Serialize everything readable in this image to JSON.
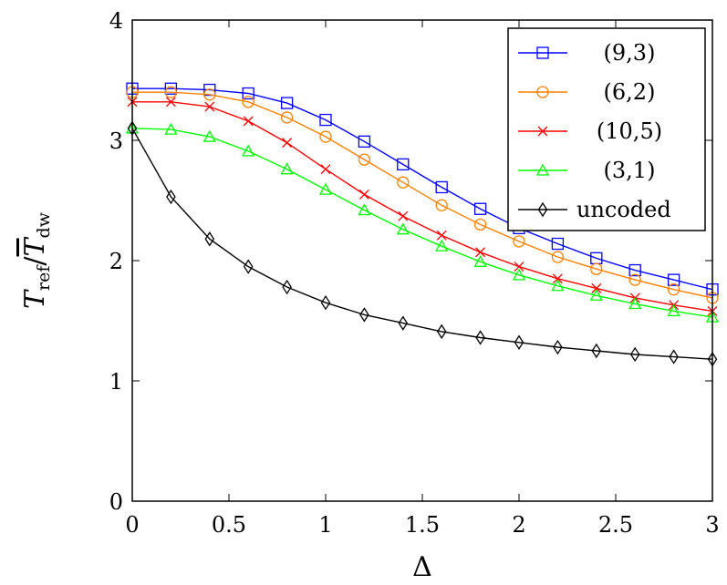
{
  "chart_data": {
    "type": "line",
    "title": "",
    "xlabel": "Δ",
    "ylabel_main": "T",
    "ylabel_sub": "ref",
    "ylabel_slash": "/",
    "ylabel_denom": "T",
    "ylabel_denom_sub": "dw",
    "xlim": [
      0,
      3
    ],
    "ylim": [
      0,
      4
    ],
    "xticks": [
      "0",
      "0.5",
      "1",
      "1.5",
      "2",
      "2.5",
      "3"
    ],
    "xtick_values": [
      0,
      0.5,
      1,
      1.5,
      2,
      2.5,
      3
    ],
    "yticks": [
      "0",
      "1",
      "2",
      "3",
      "4"
    ],
    "ytick_values": [
      0,
      1,
      2,
      3,
      4
    ],
    "grid": false,
    "legend_position": "top-right",
    "x": [
      0,
      0.2,
      0.4,
      0.6,
      0.8,
      1.0,
      1.2,
      1.4,
      1.6,
      1.8,
      2.0,
      2.2,
      2.4,
      2.6,
      2.8,
      3.0
    ],
    "series": [
      {
        "name": "(9,3)",
        "color": "#0000ff",
        "marker": "square",
        "values": [
          3.43,
          3.43,
          3.42,
          3.39,
          3.31,
          3.17,
          2.99,
          2.8,
          2.61,
          2.43,
          2.27,
          2.14,
          2.02,
          1.92,
          1.84,
          1.76
        ]
      },
      {
        "name": "(6,2)",
        "color": "#ff8000",
        "marker": "circle",
        "values": [
          3.4,
          3.4,
          3.38,
          3.32,
          3.19,
          3.03,
          2.84,
          2.65,
          2.46,
          2.3,
          2.16,
          2.03,
          1.93,
          1.84,
          1.76,
          1.69
        ]
      },
      {
        "name": "(10,5)",
        "color": "#ff0000",
        "marker": "cross",
        "values": [
          3.32,
          3.32,
          3.28,
          3.16,
          2.98,
          2.76,
          2.55,
          2.37,
          2.21,
          2.07,
          1.95,
          1.85,
          1.77,
          1.69,
          1.63,
          1.58
        ]
      },
      {
        "name": "(3,1)",
        "color": "#00ff00",
        "marker": "triangle",
        "values": [
          3.1,
          3.09,
          3.03,
          2.91,
          2.76,
          2.59,
          2.42,
          2.26,
          2.12,
          1.99,
          1.88,
          1.79,
          1.71,
          1.64,
          1.58,
          1.53
        ]
      },
      {
        "name": "uncoded",
        "color": "#000000",
        "marker": "diamond",
        "values": [
          3.1,
          2.53,
          2.18,
          1.95,
          1.78,
          1.65,
          1.55,
          1.48,
          1.41,
          1.36,
          1.32,
          1.28,
          1.25,
          1.22,
          1.2,
          1.18
        ]
      }
    ]
  }
}
